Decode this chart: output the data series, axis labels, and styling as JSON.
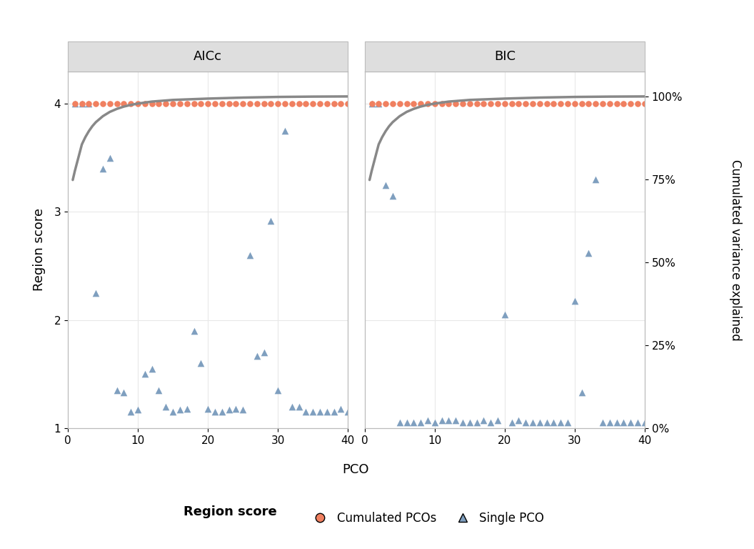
{
  "panel_titles": [
    "AICc",
    "BIC"
  ],
  "xlabel": "PCO",
  "ylabel_left": "Region score",
  "ylabel_right": "Cumulated variance explained",
  "xlim": [
    0,
    40
  ],
  "ylim_left": [
    1,
    4.3
  ],
  "ylim_right": [
    0.0,
    1.075
  ],
  "yticks_left": [
    1,
    2,
    3,
    4
  ],
  "yticks_right": [
    0.0,
    0.25,
    0.5,
    0.75,
    1.0
  ],
  "ytick_labels_right": [
    "0%",
    "25%",
    "50%",
    "75%",
    "100%"
  ],
  "background_color": "#ffffff",
  "panel_header_color": "#dedede",
  "grid_color": "#e8e8e8",
  "aicc_cumulated_x": [
    1,
    2,
    3,
    4,
    5,
    6,
    7,
    8,
    9,
    10,
    11,
    12,
    13,
    14,
    15,
    16,
    17,
    18,
    19,
    20,
    21,
    22,
    23,
    24,
    25,
    26,
    27,
    28,
    29,
    30,
    31,
    32,
    33,
    34,
    35,
    36,
    37,
    38,
    39,
    40
  ],
  "aicc_cumulated_y": [
    4,
    4,
    4,
    4,
    4,
    4,
    4,
    4,
    4,
    4,
    4,
    4,
    4,
    4,
    4,
    4,
    4,
    4,
    4,
    4,
    4,
    4,
    4,
    4,
    4,
    4,
    4,
    4,
    4,
    4,
    4,
    4,
    4,
    4,
    4,
    4,
    4,
    4,
    4,
    4
  ],
  "aicc_single_x": [
    1,
    2,
    3,
    4,
    5,
    6,
    7,
    8,
    9,
    10,
    11,
    12,
    13,
    14,
    15,
    16,
    17,
    18,
    19,
    20,
    21,
    22,
    23,
    24,
    25,
    26,
    27,
    28,
    29,
    30,
    31,
    32,
    33,
    34,
    35,
    36,
    37,
    38,
    39,
    40
  ],
  "aicc_single_y": [
    4,
    4,
    4,
    2.25,
    3.4,
    3.5,
    1.35,
    1.33,
    1.15,
    1.17,
    1.5,
    1.55,
    1.35,
    1.2,
    1.15,
    1.17,
    1.18,
    1.9,
    1.6,
    1.18,
    1.15,
    1.15,
    1.17,
    1.18,
    1.17,
    2.6,
    1.67,
    1.7,
    2.92,
    1.35,
    3.75,
    1.2,
    1.2,
    1.15,
    1.15,
    1.15,
    1.15,
    1.15,
    1.18,
    1.15
  ],
  "bic_cumulated_x": [
    1,
    2,
    3,
    4,
    5,
    6,
    7,
    8,
    9,
    10,
    11,
    12,
    13,
    14,
    15,
    16,
    17,
    18,
    19,
    20,
    21,
    22,
    23,
    24,
    25,
    26,
    27,
    28,
    29,
    30,
    31,
    32,
    33,
    34,
    35,
    36,
    37,
    38,
    39,
    40
  ],
  "bic_cumulated_y": [
    4,
    4,
    4,
    4,
    4,
    4,
    4,
    4,
    4,
    4,
    4,
    4,
    4,
    4,
    4,
    4,
    4,
    4,
    4,
    4,
    4,
    4,
    4,
    4,
    4,
    4,
    4,
    4,
    4,
    4,
    4,
    4,
    4,
    4,
    4,
    4,
    4,
    4,
    4,
    4
  ],
  "bic_single_x": [
    1,
    2,
    3,
    4,
    5,
    6,
    7,
    8,
    9,
    10,
    11,
    12,
    13,
    14,
    15,
    16,
    17,
    18,
    19,
    20,
    21,
    22,
    23,
    24,
    25,
    26,
    27,
    28,
    29,
    30,
    31,
    32,
    33,
    34,
    35,
    36,
    37,
    38,
    39,
    40
  ],
  "bic_single_y": [
    4,
    4,
    3.25,
    3.15,
    1.05,
    1.05,
    1.05,
    1.05,
    1.07,
    1.05,
    1.07,
    1.07,
    1.07,
    1.05,
    1.05,
    1.05,
    1.07,
    1.05,
    1.07,
    2.05,
    1.05,
    1.07,
    1.05,
    1.05,
    1.05,
    1.05,
    1.05,
    1.05,
    1.05,
    2.18,
    1.33,
    2.62,
    3.3,
    1.05,
    1.05,
    1.05,
    1.05,
    1.05,
    1.05,
    1.05
  ],
  "cum_var_x_smooth": [
    0.7,
    1,
    1.5,
    2,
    2.5,
    3,
    3.5,
    4,
    5,
    6,
    7,
    8,
    9,
    10,
    12,
    15,
    20,
    25,
    30,
    35,
    40
  ],
  "cum_var_y_smooth": [
    0.748,
    0.775,
    0.815,
    0.855,
    0.877,
    0.895,
    0.91,
    0.922,
    0.94,
    0.953,
    0.962,
    0.969,
    0.974,
    0.978,
    0.984,
    0.989,
    0.993,
    0.996,
    0.998,
    0.999,
    0.9995
  ],
  "orange_color": "#F08060",
  "blue_color": "#7F9FBF",
  "grey_color": "#888888",
  "legend_title": "Region score",
  "legend_label_cumulated": "Cumulated PCOs",
  "legend_label_single": "Single PCO"
}
